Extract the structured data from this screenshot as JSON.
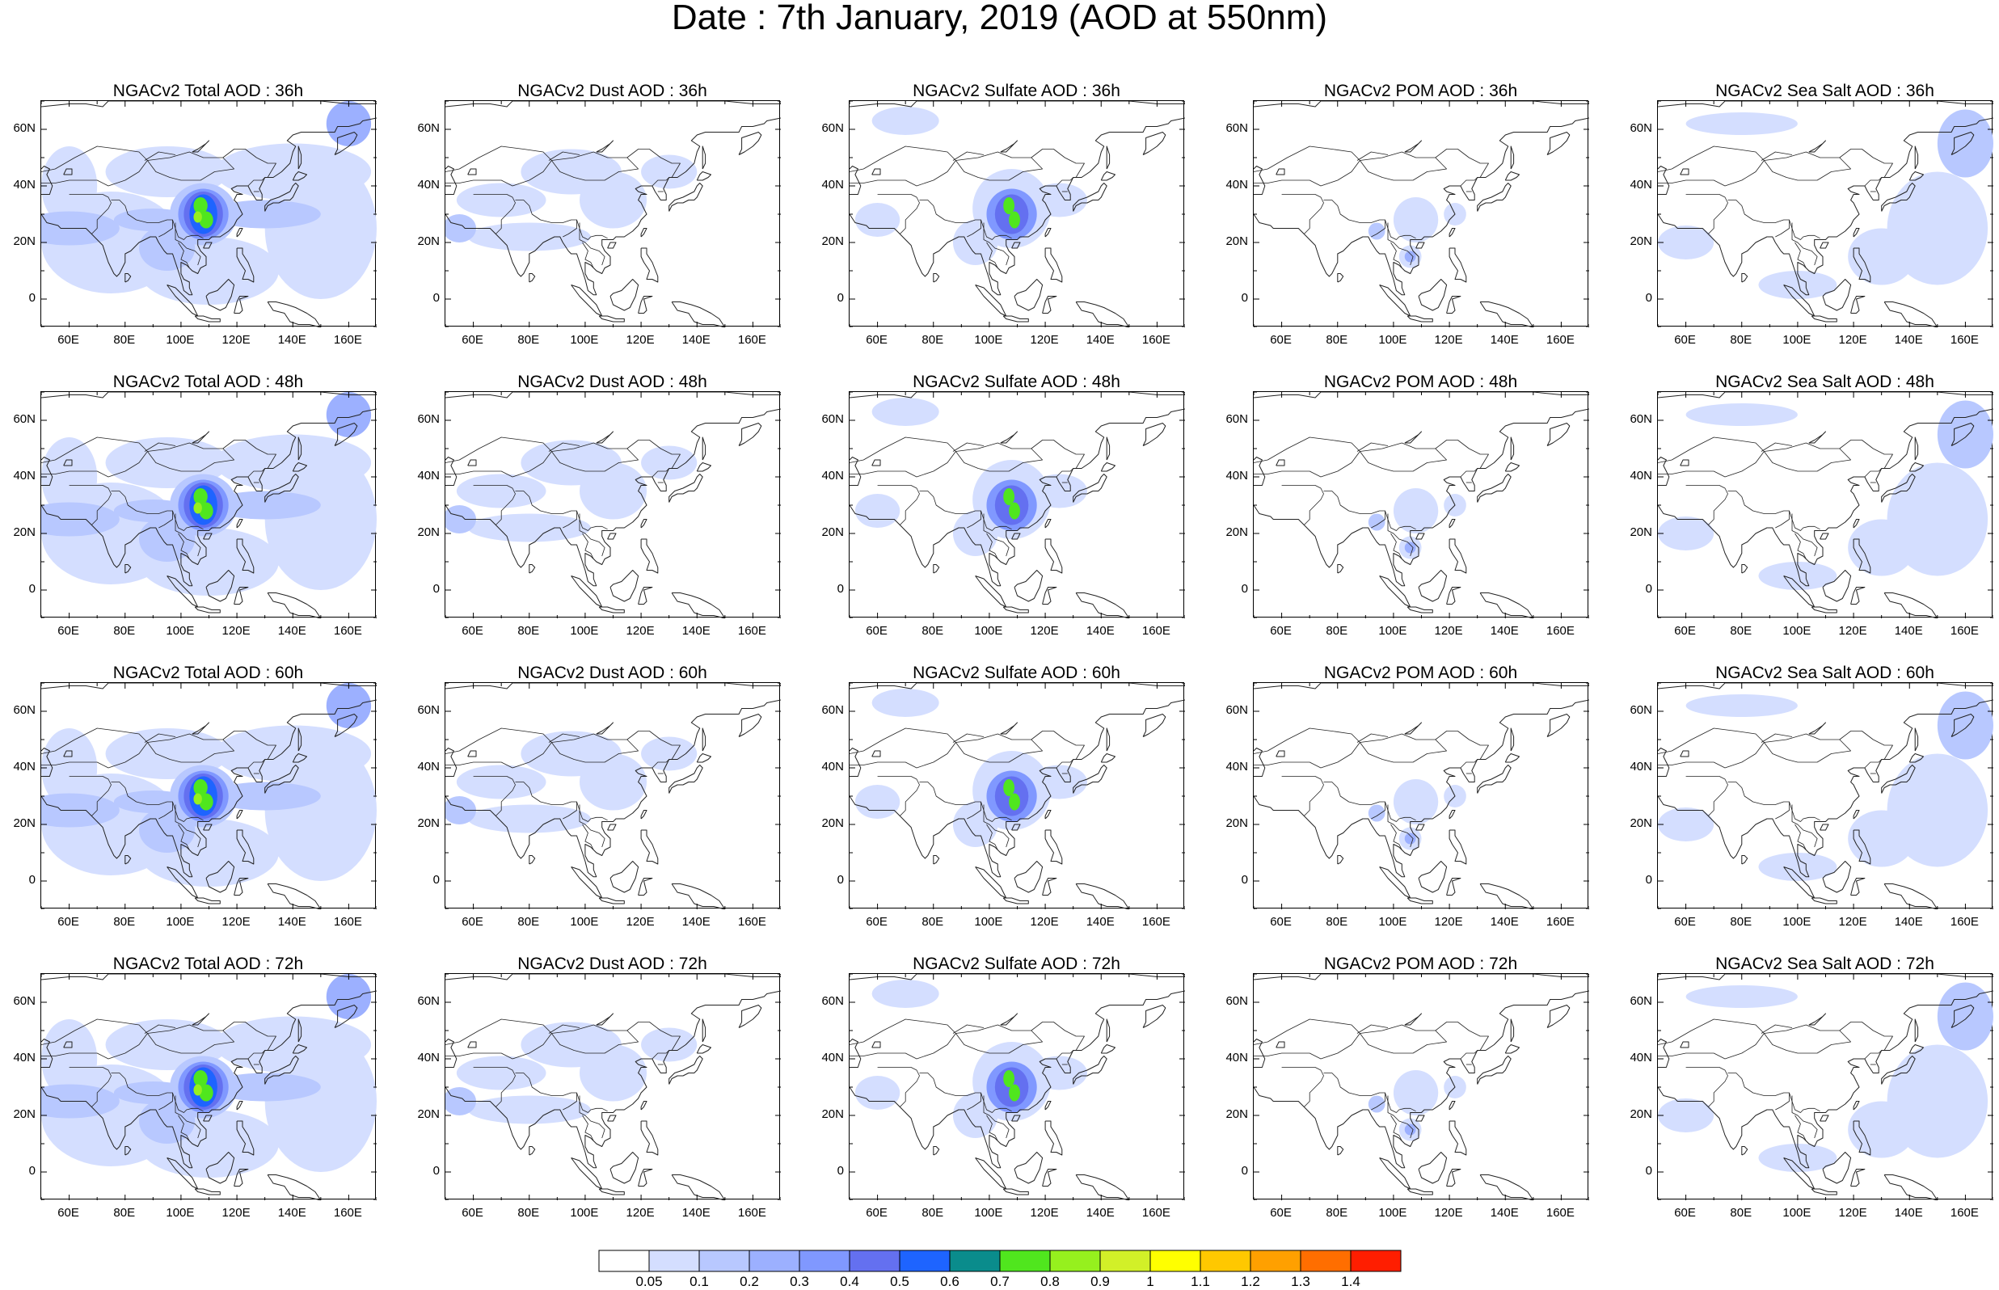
{
  "title": "Date : 7th January, 2019 (AOD at 550nm)",
  "lon_ticks": [
    "60E",
    "80E",
    "100E",
    "120E",
    "140E",
    "160E"
  ],
  "lat_ticks": [
    "60N",
    "40N",
    "20N",
    "0"
  ],
  "panels": [
    {
      "row": 0,
      "col": 0,
      "title": "NGACv2 Total AOD : 36h",
      "type": "total"
    },
    {
      "row": 0,
      "col": 1,
      "title": "NGACv2 Dust AOD : 36h",
      "type": "dust"
    },
    {
      "row": 0,
      "col": 2,
      "title": "NGACv2 Sulfate AOD : 36h",
      "type": "sulfate"
    },
    {
      "row": 0,
      "col": 3,
      "title": "NGACv2 POM AOD : 36h",
      "type": "pom"
    },
    {
      "row": 0,
      "col": 4,
      "title": "NGACv2 Sea Salt AOD : 36h",
      "type": "seasalt"
    },
    {
      "row": 1,
      "col": 0,
      "title": "NGACv2 Total AOD : 48h",
      "type": "total"
    },
    {
      "row": 1,
      "col": 1,
      "title": "NGACv2 Dust AOD : 48h",
      "type": "dust"
    },
    {
      "row": 1,
      "col": 2,
      "title": "NGACv2 Sulfate AOD : 48h",
      "type": "sulfate"
    },
    {
      "row": 1,
      "col": 3,
      "title": "NGACv2 POM AOD : 48h",
      "type": "pom"
    },
    {
      "row": 1,
      "col": 4,
      "title": "NGACv2 Sea Salt AOD : 48h",
      "type": "seasalt"
    },
    {
      "row": 2,
      "col": 0,
      "title": "NGACv2 Total AOD : 60h",
      "type": "total"
    },
    {
      "row": 2,
      "col": 1,
      "title": "NGACv2 Dust AOD : 60h",
      "type": "dust"
    },
    {
      "row": 2,
      "col": 2,
      "title": "NGACv2 Sulfate AOD : 60h",
      "type": "sulfate"
    },
    {
      "row": 2,
      "col": 3,
      "title": "NGACv2 POM AOD : 60h",
      "type": "pom"
    },
    {
      "row": 2,
      "col": 4,
      "title": "NGACv2 Sea Salt AOD : 60h",
      "type": "seasalt"
    },
    {
      "row": 3,
      "col": 0,
      "title": "NGACv2 Total AOD : 72h",
      "type": "total"
    },
    {
      "row": 3,
      "col": 1,
      "title": "NGACv2 Dust AOD : 72h",
      "type": "dust"
    },
    {
      "row": 3,
      "col": 2,
      "title": "NGACv2 Sulfate AOD : 72h",
      "type": "sulfate"
    },
    {
      "row": 3,
      "col": 3,
      "title": "NGACv2 POM AOD : 72h",
      "type": "pom"
    },
    {
      "row": 3,
      "col": 4,
      "title": "NGACv2 Sea Salt  AOD : 72h",
      "type": "seasalt"
    }
  ],
  "colorbar": {
    "labels": [
      "0.05",
      "0.1",
      "0.2",
      "0.3",
      "0.4",
      "0.5",
      "0.6",
      "0.7",
      "0.8",
      "0.9",
      "1",
      "1.1",
      "1.2",
      "1.3",
      "1.4"
    ],
    "colors": [
      "#ffffff",
      "#d4deff",
      "#b8c8ff",
      "#9cb0ff",
      "#8098ff",
      "#6470f0",
      "#1e64ff",
      "#0a8c8c",
      "#50e61e",
      "#96f01e",
      "#d2f028",
      "#ffff00",
      "#ffc800",
      "#ffa000",
      "#ff6e00",
      "#ff1e00"
    ]
  }
}
